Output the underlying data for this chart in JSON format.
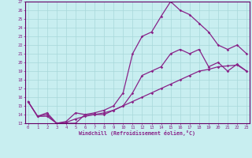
{
  "xlabel": "Windchill (Refroidissement éolien,°C)",
  "bg_color": "#c8eef0",
  "grid_color": "#a8d8da",
  "line_color": "#882288",
  "spine_color": "#660066",
  "x_ticks": [
    0,
    1,
    2,
    3,
    4,
    5,
    6,
    7,
    8,
    9,
    10,
    11,
    12,
    13,
    14,
    15,
    16,
    17,
    18,
    19,
    20,
    21,
    22,
    23
  ],
  "ylim": [
    13,
    27
  ],
  "xlim": [
    -0.3,
    23.3
  ],
  "y_ticks": [
    13,
    14,
    15,
    16,
    17,
    18,
    19,
    20,
    21,
    22,
    23,
    24,
    25,
    26,
    27
  ],
  "line1_x": [
    0,
    1,
    2,
    3,
    4,
    5,
    6,
    7,
    8,
    9,
    10,
    11,
    12,
    13,
    14,
    15,
    16,
    17,
    18,
    19,
    20,
    21,
    22,
    23
  ],
  "line1_y": [
    15.5,
    13.8,
    14.2,
    13.0,
    13.2,
    14.2,
    14.0,
    14.2,
    14.5,
    15.0,
    16.5,
    21.0,
    23.0,
    23.5,
    25.3,
    27.0,
    26.0,
    25.5,
    24.5,
    23.5,
    22.0,
    21.5,
    22.0,
    21.0
  ],
  "line2_x": [
    0,
    1,
    2,
    3,
    4,
    5,
    6,
    7,
    8,
    9,
    10,
    11,
    12,
    13,
    14,
    15,
    16,
    17,
    18,
    19,
    20,
    21,
    22,
    23
  ],
  "line2_y": [
    15.5,
    13.8,
    13.8,
    13.0,
    13.0,
    13.0,
    14.0,
    14.0,
    14.0,
    14.5,
    15.0,
    16.5,
    18.5,
    19.0,
    19.5,
    21.0,
    21.5,
    21.0,
    21.5,
    19.5,
    20.0,
    19.0,
    19.8,
    19.0
  ],
  "line3_x": [
    0,
    1,
    2,
    3,
    4,
    5,
    6,
    7,
    8,
    9,
    10,
    11,
    12,
    13,
    14,
    15,
    16,
    17,
    18,
    19,
    20,
    21,
    22,
    23
  ],
  "line3_y": [
    15.5,
    13.8,
    14.0,
    13.0,
    13.1,
    13.5,
    13.8,
    14.0,
    14.2,
    14.5,
    15.0,
    15.5,
    16.0,
    16.5,
    17.0,
    17.5,
    18.0,
    18.5,
    19.0,
    19.2,
    19.5,
    19.6,
    19.7,
    19.0
  ]
}
